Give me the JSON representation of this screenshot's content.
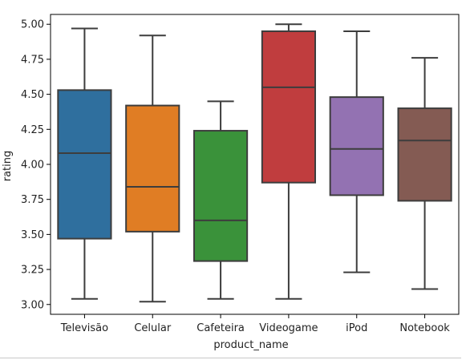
{
  "chart_data": {
    "type": "box",
    "xlabel": "product_name",
    "ylabel": "rating",
    "ylim": [
      2.93,
      5.07
    ],
    "yticks": [
      3.0,
      3.25,
      3.5,
      3.75,
      4.0,
      4.25,
      4.5,
      4.75,
      5.0
    ],
    "ytick_labels": [
      "3.00",
      "3.25",
      "3.50",
      "3.75",
      "4.00",
      "4.25",
      "4.50",
      "4.75",
      "5.00"
    ],
    "grid": false,
    "legend": "none",
    "categories": [
      "Televisão",
      "Celular",
      "Cafeteira",
      "Videogame",
      "iPod",
      "Notebook"
    ],
    "boxes": [
      {
        "category": "Televisão",
        "whisker_low": 3.04,
        "q1": 3.47,
        "median": 4.08,
        "q3": 4.53,
        "whisker_high": 4.97,
        "color": "#2f6f9e"
      },
      {
        "category": "Celular",
        "whisker_low": 3.02,
        "q1": 3.52,
        "median": 3.84,
        "q3": 4.42,
        "whisker_high": 4.92,
        "color": "#e07d24"
      },
      {
        "category": "Cafeteira",
        "whisker_low": 3.04,
        "q1": 3.31,
        "median": 3.6,
        "q3": 4.24,
        "whisker_high": 4.45,
        "color": "#3a923a"
      },
      {
        "category": "Videogame",
        "whisker_low": 3.04,
        "q1": 3.87,
        "median": 4.55,
        "q3": 4.95,
        "whisker_high": 5.0,
        "color": "#c03d3e"
      },
      {
        "category": "iPod",
        "whisker_low": 3.23,
        "q1": 3.78,
        "median": 4.11,
        "q3": 4.48,
        "whisker_high": 4.95,
        "color": "#9372b2"
      },
      {
        "category": "Notebook",
        "whisker_low": 3.11,
        "q1": 3.74,
        "median": 4.17,
        "q3": 4.4,
        "whisker_high": 4.76,
        "color": "#845b53"
      }
    ],
    "line_color": "#3d3d3d"
  }
}
